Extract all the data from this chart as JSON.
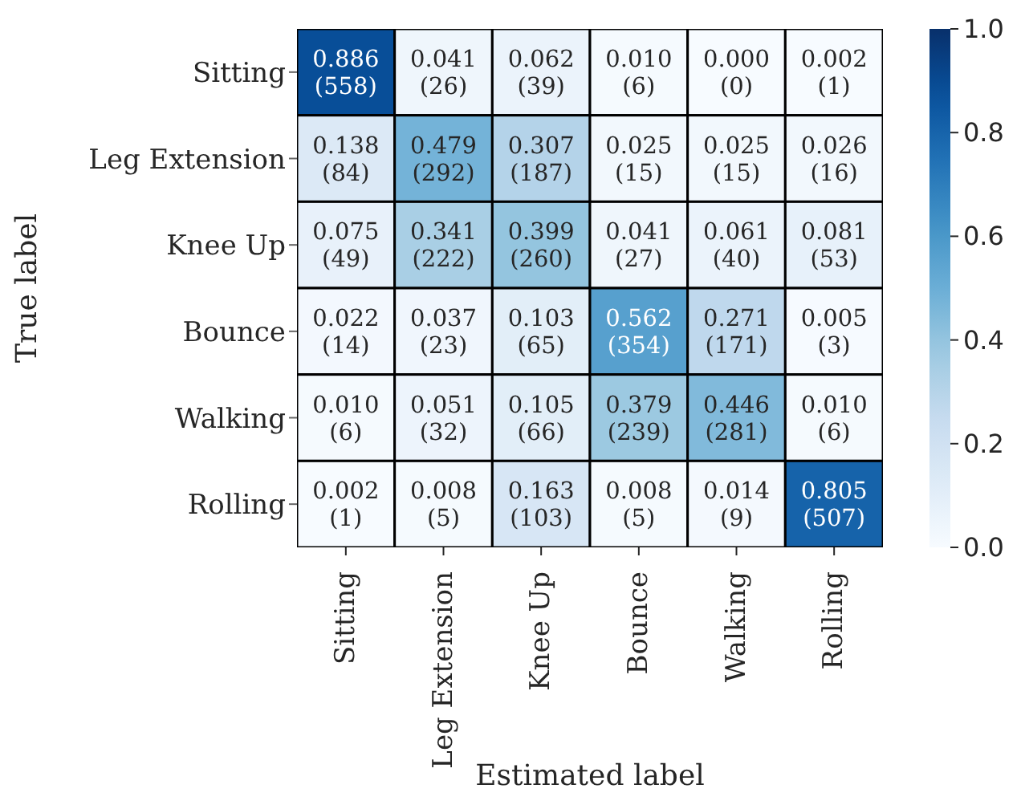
{
  "chart_data": {
    "type": "heatmap",
    "xlabel": "Estimated label",
    "ylabel": "True label",
    "categories": [
      "Sitting",
      "Leg Extension",
      "Knee Up",
      "Bounce",
      "Walking",
      "Rolling"
    ],
    "y_categories": [
      "Sitting",
      "Leg Extension",
      "Knee Up",
      "Bounce",
      "Walking",
      "Rolling"
    ],
    "cells": [
      [
        0.886,
        0.041,
        0.062,
        0.01,
        0.0,
        0.002
      ],
      [
        0.138,
        0.479,
        0.307,
        0.025,
        0.025,
        0.026
      ],
      [
        0.075,
        0.341,
        0.399,
        0.041,
        0.061,
        0.081
      ],
      [
        0.022,
        0.037,
        0.103,
        0.562,
        0.271,
        0.005
      ],
      [
        0.01,
        0.051,
        0.105,
        0.379,
        0.446,
        0.01
      ],
      [
        0.002,
        0.008,
        0.163,
        0.008,
        0.014,
        0.805
      ]
    ],
    "cell_labels": [
      [
        "0.886\n(558)",
        "0.041\n(26)",
        "0.062\n(39)",
        "0.010\n(6)",
        "0.000\n(0)",
        "0.002\n(1)"
      ],
      [
        "0.138\n(84)",
        "0.479\n(292)",
        "0.307\n(187)",
        "0.025\n(15)",
        "0.025\n(15)",
        "0.026\n(16)"
      ],
      [
        "0.075\n(49)",
        "0.341\n(222)",
        "0.399\n(260)",
        "0.041\n(27)",
        "0.061\n(40)",
        "0.081\n(53)"
      ],
      [
        "0.022\n(14)",
        "0.037\n(23)",
        "0.103\n(65)",
        "0.562\n(354)",
        "0.271\n(171)",
        "0.005\n(3)"
      ],
      [
        "0.010\n(6)",
        "0.051\n(32)",
        "0.105\n(66)",
        "0.379\n(239)",
        "0.446\n(281)",
        "0.010\n(6)"
      ],
      [
        "0.002\n(1)",
        "0.008\n(5)",
        "0.163\n(103)",
        "0.008\n(5)",
        "0.014\n(9)",
        "0.805\n(507)"
      ]
    ],
    "clim": [
      0,
      1
    ],
    "cticks": [
      {
        "value": 0,
        "label": "0.0"
      },
      {
        "value": 0.2,
        "label": "0.2"
      },
      {
        "value": 0.4,
        "label": "0.4"
      },
      {
        "value": 0.6,
        "label": "0.6"
      },
      {
        "value": 0.8,
        "label": "0.8"
      },
      {
        "value": 1,
        "label": "1.0"
      }
    ]
  }
}
